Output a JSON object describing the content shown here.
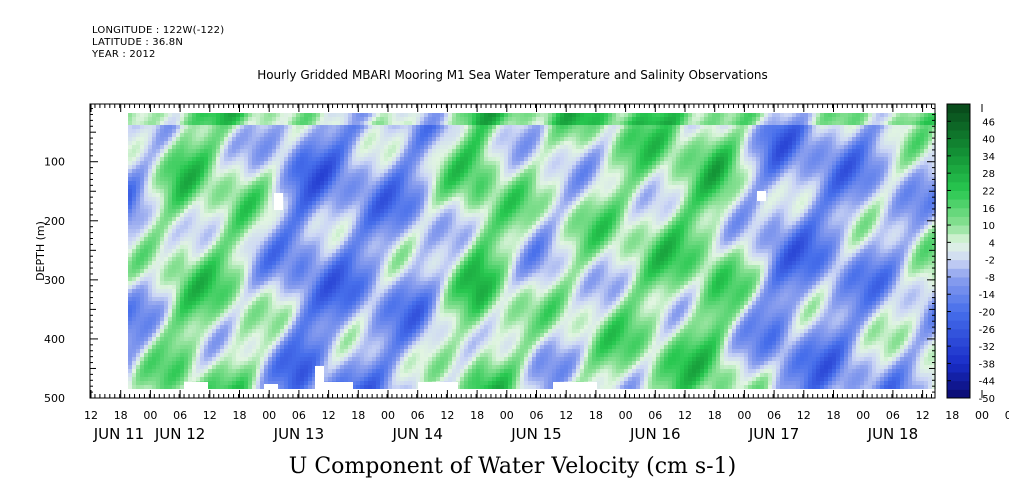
{
  "header": {
    "longitude": "LONGITUDE : 122W(-122)",
    "latitude": "LATITUDE : 36.8N",
    "year": "YEAR : 2012",
    "title": "Hourly Gridded MBARI Mooring M1 Sea Water Temperature and Salinity Observations"
  },
  "colors": {
    "positive_dark": "#0b4a1a",
    "positive": "#22c94a",
    "neutral": "#e8f6e8",
    "negative": "#6f86e8",
    "negative_dark": "#0a0a6e"
  },
  "chart_data": {
    "type": "heatmap",
    "title": "Hourly Gridded MBARI Mooring M1 Sea Water Temperature and Salinity Observations",
    "xlabel": "U Component of Water Velocity (cm s-1)",
    "ylabel": "DEPTH (m)",
    "x_hour_ticks": [
      "12",
      "18",
      "00",
      "06",
      "12",
      "18",
      "00",
      "06",
      "12",
      "18",
      "00",
      "06",
      "12",
      "18",
      "00",
      "06",
      "12",
      "18",
      "00",
      "06",
      "12",
      "18",
      "00",
      "06",
      "12",
      "18",
      "00",
      "06",
      "12",
      "18",
      "00",
      "06",
      "12"
    ],
    "x_day_ticks": [
      "JUN 11",
      "JUN 12",
      "JUN 13",
      "JUN 14",
      "JUN 15",
      "JUN 16",
      "JUN 17",
      "JUN 18"
    ],
    "y_ticks": [
      "100",
      "200",
      "300",
      "400",
      "500"
    ],
    "ylim": [
      500,
      10
    ],
    "colorbar": {
      "labels": [
        "46",
        "40",
        "34",
        "28",
        "22",
        "16",
        "10",
        "4",
        "-2",
        "-8",
        "-14",
        "-20",
        "-26",
        "-32",
        "-38",
        "-44",
        "-50"
      ],
      "min": -50,
      "max": 52
    },
    "profiles": [
      {
        "time": "JUN 11 18:00",
        "u": -8
      },
      {
        "time": "JUN 12 06:00",
        "u": 12
      },
      {
        "time": "JUN 12 18:00",
        "u": 8
      },
      {
        "time": "JUN 13 06:00",
        "u": -14
      },
      {
        "time": "JUN 13 18:00",
        "u": -10
      },
      {
        "time": "JUN 14 06:00",
        "u": -8
      },
      {
        "time": "JUN 14 18:00",
        "u": 16
      },
      {
        "time": "JUN 15 06:00",
        "u": 0
      },
      {
        "time": "JUN 15 18:00",
        "u": 6
      },
      {
        "time": "JUN 16 06:00",
        "u": 10
      },
      {
        "time": "JUN 16 18:00",
        "u": 14
      },
      {
        "time": "JUN 17 06:00",
        "u": -12
      },
      {
        "time": "JUN 17 18:00",
        "u": -10
      },
      {
        "time": "JUN 18 06:00",
        "u": -4
      },
      {
        "time": "JUN 18 12:00",
        "u": 0
      }
    ]
  }
}
